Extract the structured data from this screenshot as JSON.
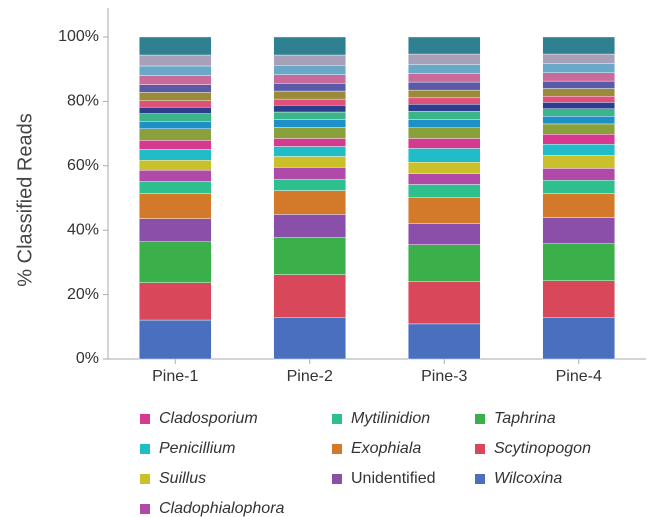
{
  "chart_data": {
    "type": "stacked_bar",
    "ylabel": "% Classified Reads",
    "categories": [
      "Pine-1",
      "Pine-2",
      "Pine-3",
      "Pine-4"
    ],
    "ylim": [
      0,
      109
    ],
    "yticks": [
      {
        "value": 0,
        "label": "0%"
      },
      {
        "value": 20,
        "label": "20%"
      },
      {
        "value": 40,
        "label": "40%"
      },
      {
        "value": 60,
        "label": "60%"
      },
      {
        "value": 80,
        "label": "80%"
      },
      {
        "value": 100,
        "label": "100%"
      }
    ],
    "series": [
      {
        "name": "Wilcoxina",
        "color": "#4a6fbf",
        "italic": true,
        "values": [
          12.1,
          12.8,
          10.9,
          12.8
        ]
      },
      {
        "name": "Scytinopogon",
        "color": "#d8475a",
        "italic": true,
        "values": [
          11.6,
          13.4,
          13.1,
          11.5
        ]
      },
      {
        "name": "Taphrina",
        "color": "#3bb04a",
        "italic": true,
        "values": [
          12.7,
          11.5,
          11.5,
          11.5
        ]
      },
      {
        "name": "Unidentified",
        "color": "#8a4fa8",
        "italic": false,
        "values": [
          7.2,
          7.2,
          6.6,
          8.1
        ]
      },
      {
        "name": "Exophiala",
        "color": "#d27a2a",
        "italic": true,
        "values": [
          7.8,
          7.4,
          8.1,
          7.5
        ]
      },
      {
        "name": "Mytilinidion",
        "color": "#2ebf8f",
        "italic": true,
        "values": [
          3.7,
          3.5,
          4.0,
          4.1
        ]
      },
      {
        "name": "Cladophialophora",
        "color": "#b04aa8",
        "italic": true,
        "values": [
          3.5,
          3.7,
          3.4,
          3.7
        ]
      },
      {
        "name": "Suillus",
        "color": "#c9c02a",
        "italic": true,
        "values": [
          3.1,
          3.4,
          3.5,
          4.0
        ]
      },
      {
        "name": "Penicillium",
        "color": "#20bcc8",
        "italic": true,
        "values": [
          3.4,
          3.1,
          4.3,
          3.5
        ]
      },
      {
        "name": "Cladosporium",
        "color": "#d63a8f",
        "italic": true,
        "values": [
          2.8,
          2.5,
          3.1,
          3.1
        ]
      },
      {
        "color": "#8aa03a",
        "values": [
          3.6,
          3.4,
          3.3,
          3.2
        ]
      },
      {
        "color": "#1e90c8",
        "values": [
          2.3,
          2.5,
          2.6,
          2.4
        ]
      },
      {
        "color": "#3ab58a",
        "values": [
          2.4,
          2.3,
          2.5,
          2.3
        ]
      },
      {
        "color": "#2c3e8c",
        "values": [
          2.0,
          2.1,
          2.2,
          2.0
        ]
      },
      {
        "color": "#e0507a",
        "values": [
          2.0,
          1.9,
          2.0,
          1.9
        ]
      },
      {
        "color": "#9a8a3a",
        "values": [
          2.6,
          2.5,
          2.4,
          2.4
        ]
      },
      {
        "color": "#5a5aa8",
        "values": [
          2.4,
          2.4,
          2.5,
          2.3
        ]
      },
      {
        "color": "#c86a9a",
        "values": [
          2.8,
          2.7,
          2.6,
          2.6
        ]
      },
      {
        "color": "#6aa8c8",
        "values": [
          3.0,
          2.9,
          2.9,
          2.8
        ]
      },
      {
        "color": "#a8a0b8",
        "values": [
          3.4,
          3.2,
          3.2,
          3.0
        ]
      },
      {
        "color": "#2f8090",
        "values": [
          5.6,
          5.6,
          5.3,
          5.3
        ]
      }
    ]
  }
}
